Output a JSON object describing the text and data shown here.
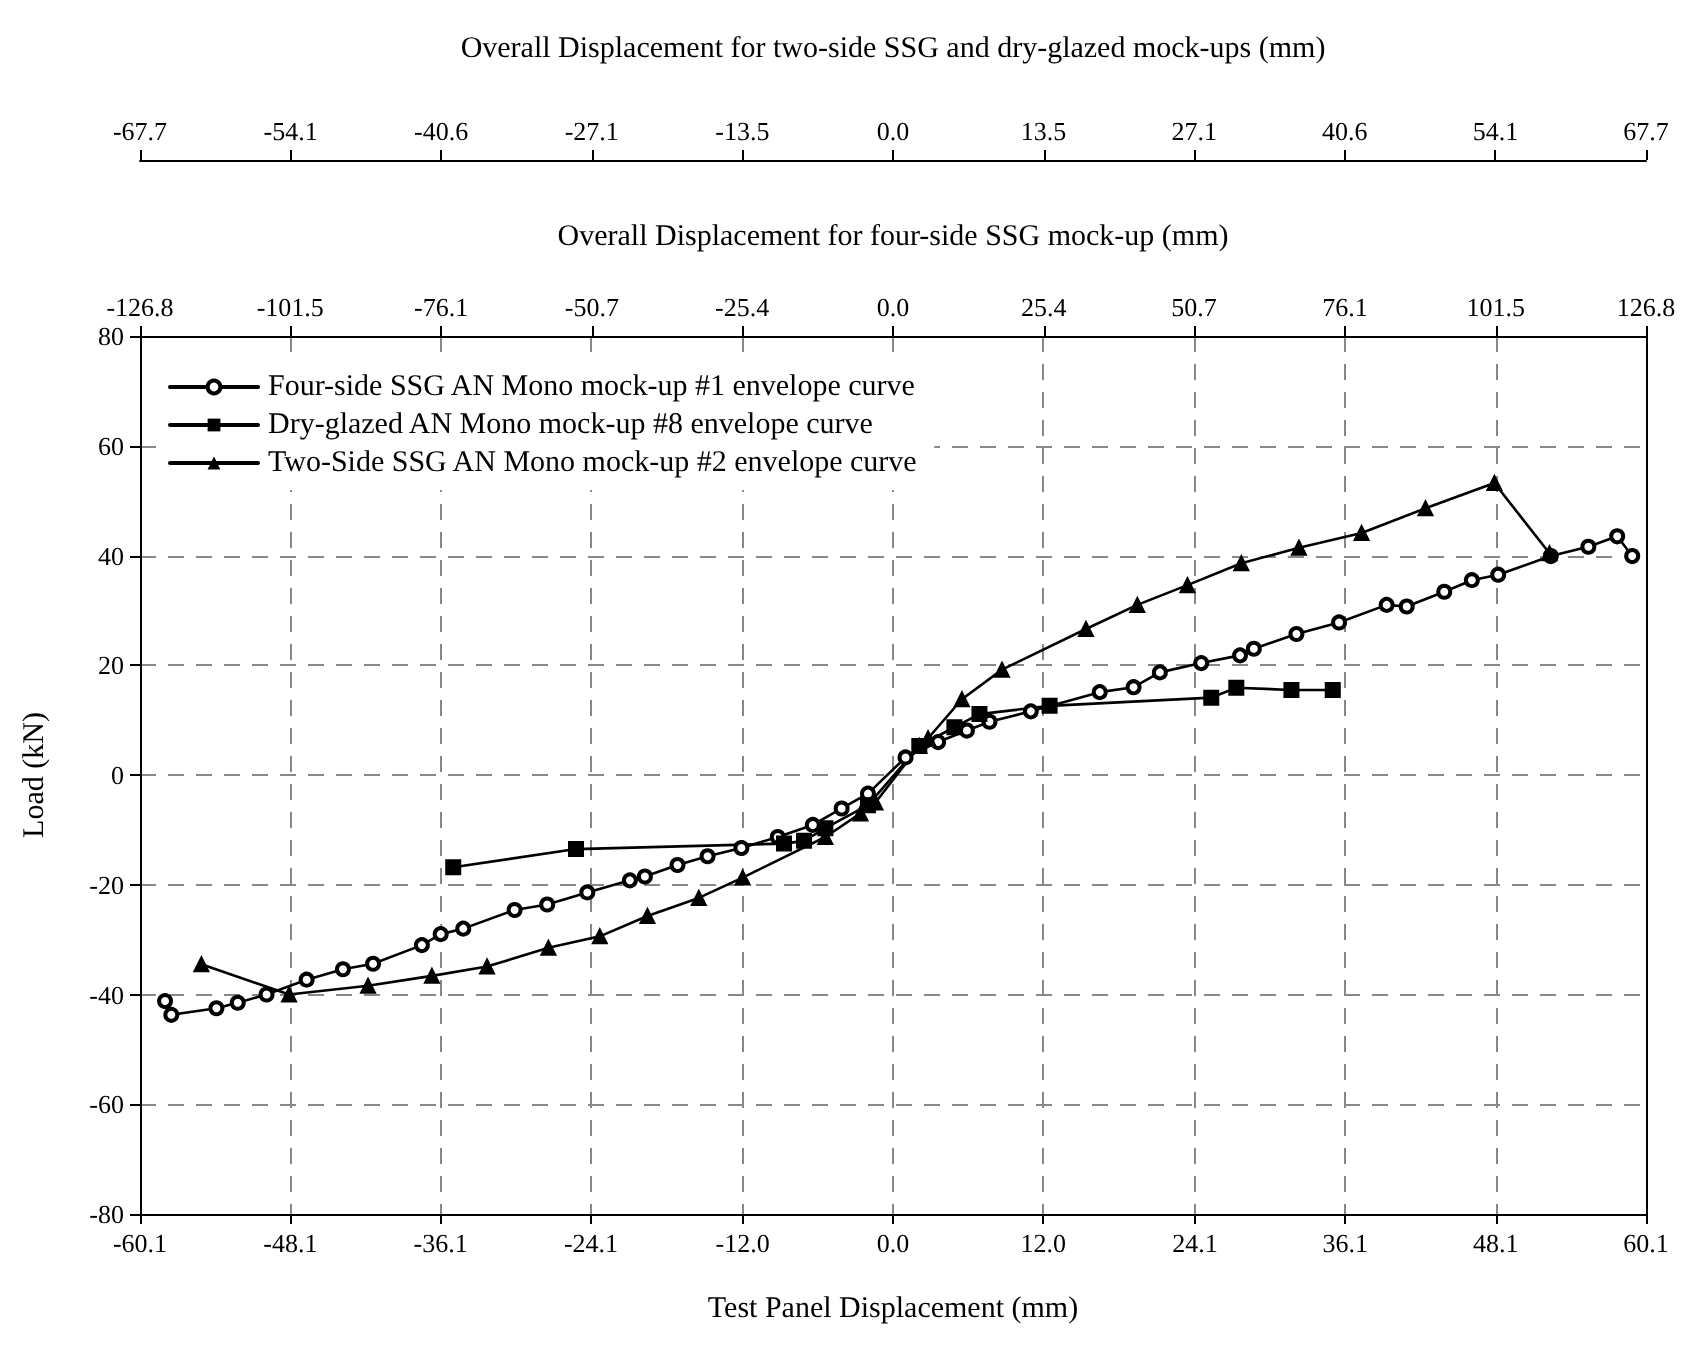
{
  "chart_data": {
    "type": "line",
    "xlabel": "Test Panel Displacement (mm)",
    "ylabel": "Load (kN)",
    "x2label": "Overall Displacement for four-side SSG mock-up (mm)",
    "annotations": [
      "Overall Displacement for two-side SSG and dry-glazed mock-ups (mm)",
      "-67.7",
      "-54.1",
      "-40.6",
      "-27.1",
      "-13.5",
      "0.0",
      "13.5",
      "27.1",
      "40.6",
      "54.1",
      "67.7"
    ],
    "xlim": [
      -60.1,
      60.1
    ],
    "xticks": [
      -60.1,
      -48.1,
      -36.1,
      -24.1,
      {
        "value": -12,
        "label": "-12.0"
      },
      {
        "value": 0,
        "label": "0.0"
      },
      {
        "value": 12,
        "label": "12.0"
      },
      24.1,
      36.1,
      48.1,
      60.1
    ],
    "x2lim": [
      -126.8,
      126.8
    ],
    "x2ticks": [
      -126.8,
      -101.5,
      -76.1,
      -50.7,
      -25.4,
      {
        "value": 0,
        "label": "0.0"
      },
      25.4,
      50.7,
      76.1,
      101.5,
      126.8
    ],
    "ylim": [
      -80,
      80
    ],
    "yticks": [
      -80,
      -60,
      -40,
      -20,
      0,
      20,
      40,
      60,
      80
    ],
    "grid": true,
    "legend": "top left",
    "line_style": "solid",
    "series": [
      {
        "name": "Four-side SSG AN Mono mock-up #1 envelope curve",
        "color": "#000000",
        "marker": "circle",
        "x": [
          -58.1,
          -57.6,
          -54.0,
          -52.3,
          -50.0,
          -46.8,
          -43.9,
          -41.5,
          -37.6,
          -36.1,
          -34.3,
          -30.2,
          -27.6,
          -24.4,
          -21.0,
          -19.8,
          -17.2,
          -14.8,
          -12.1,
          -9.2,
          -6.4,
          -4.1,
          -2.0,
          1.0,
          3.6,
          5.9,
          7.7,
          11.0,
          16.5,
          19.2,
          21.3,
          24.6,
          27.7,
          28.8,
          32.2,
          35.6,
          39.4,
          41.0,
          44.0,
          46.2,
          48.3,
          52.5,
          55.5,
          57.8,
          59.0
        ],
        "values": [
          -41.2,
          -43.7,
          -42.5,
          -41.5,
          -40.0,
          -37.3,
          -35.4,
          -34.4,
          -31.0,
          -29.0,
          -28.0,
          -24.6,
          -23.6,
          -21.4,
          -19.2,
          -18.5,
          -16.4,
          -14.8,
          -13.3,
          -11.3,
          -9.1,
          -6.1,
          -3.4,
          3.2,
          6.0,
          8.1,
          9.7,
          11.6,
          15.1,
          16.0,
          18.7,
          20.4,
          21.8,
          23.0,
          25.7,
          27.8,
          31.0,
          30.7,
          33.4,
          35.5,
          36.5,
          39.9,
          41.6,
          43.5,
          39.9
        ]
      },
      {
        "name": "Dry-glazed AN Mono mock-up #8 envelope curve",
        "color": "#000000",
        "marker": "square",
        "x": [
          -35.1,
          -25.3,
          -8.7,
          -7.1,
          -5.4,
          -2.0,
          2.1,
          4.9,
          6.9,
          12.5,
          25.4,
          27.4,
          31.8,
          35.1
        ],
        "values": [
          -16.8,
          -13.5,
          -12.5,
          -12.0,
          -9.7,
          -5.5,
          5.3,
          8.7,
          11.1,
          12.6,
          14.1,
          15.9,
          15.5,
          15.5
        ]
      },
      {
        "name": "Two-Side SSG AN Mono mock-up #2 envelope curve",
        "color": "#000000",
        "marker": "triangle",
        "x": [
          -55.2,
          -48.2,
          -41.9,
          -36.8,
          -32.4,
          -27.5,
          -23.4,
          -19.6,
          -15.5,
          -12.0,
          -5.4,
          -2.6,
          -1.4,
          2.1,
          2.8,
          5.5,
          8.7,
          15.4,
          19.5,
          23.5,
          27.8,
          32.4,
          37.4,
          42.5,
          48.0,
          52.4
        ],
        "values": [
          -34.5,
          -40.0,
          -38.4,
          -36.6,
          -34.9,
          -31.5,
          -29.4,
          -25.7,
          -22.4,
          -18.7,
          -11.3,
          -7.0,
          -5.0,
          5.3,
          6.7,
          13.8,
          19.2,
          26.6,
          31.0,
          34.6,
          38.6,
          41.4,
          44.1,
          48.6,
          53.2,
          40.4
        ]
      }
    ]
  }
}
